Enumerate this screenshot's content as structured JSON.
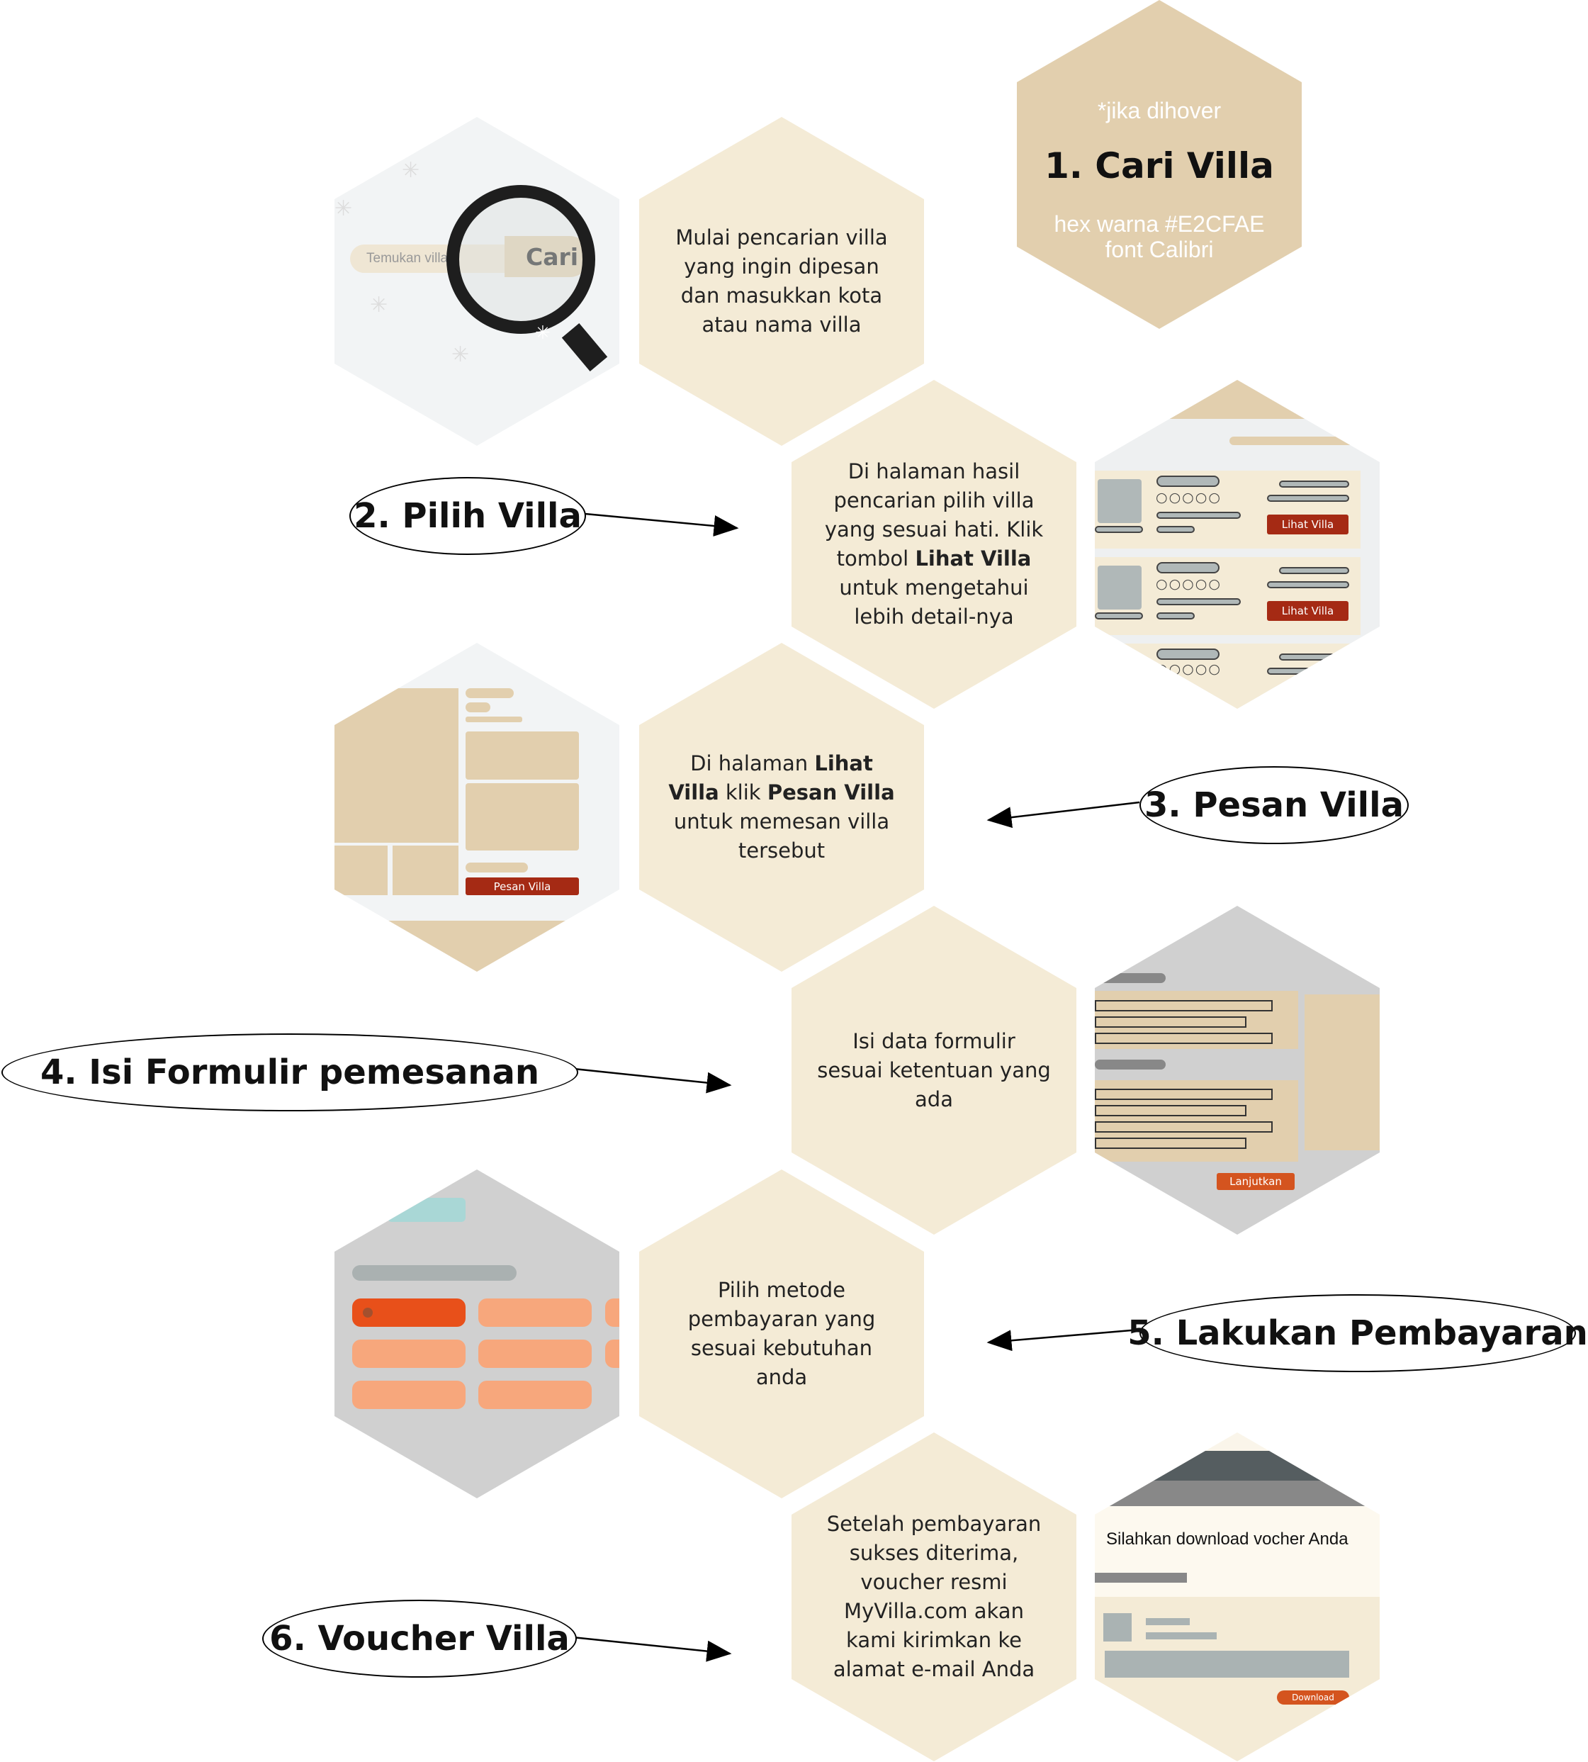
{
  "legend": {
    "note": "*jika dihover",
    "title": "1. Cari Villa",
    "hex_line": "hex warna #E2CFAE",
    "font_line": "font Calibri"
  },
  "steps": {
    "s1": {
      "desc": "Mulai pencarian villa yang ingin dipesan dan masukkan kota atau nama villa"
    },
    "s2": {
      "label": "2. Pilih Villa",
      "desc_a": "Di halaman hasil pencarian pilih villa yang sesuai hati. Klik tombol ",
      "desc_b": "Lihat Villa",
      "desc_c": " untuk mengetahui lebih detail-nya"
    },
    "s3": {
      "label": "3. Pesan Villa",
      "desc_a": "Di halaman ",
      "desc_b": "Lihat Villa",
      "desc_c": " klik ",
      "desc_d": "Pesan Villa",
      "desc_e": " untuk memesan villa tersebut"
    },
    "s4": {
      "label": "4. Isi Formulir pemesanan",
      "desc": "Isi data formulir sesuai ketentuan yang ada"
    },
    "s5": {
      "label": "5. Lakukan Pembayaran",
      "desc": "Pilih metode pembayaran yang sesuai kebutuhan anda"
    },
    "s6": {
      "label": "6. Voucher Villa",
      "desc": "Setelah pembayaran sukses diterima, voucher resmi MyVilla.com akan kami kirimkan ke alamat e-mail Anda"
    }
  },
  "mockups": {
    "search_placeholder": "Temukan villa",
    "search_button": "Cari",
    "lihat_villa": "Lihat Villa",
    "pesan_villa": "Pesan Villa",
    "lanjutkan": "Lanjutkan",
    "voucher_title": "Silahkan download vocher Anda",
    "download": "Download"
  },
  "colors": {
    "hex_light": "#F4EBD6",
    "hex_accent": "#E2CFAE",
    "button_red": "#A52A14",
    "orange": "#E8501A",
    "orange_light": "#F7A77C"
  }
}
